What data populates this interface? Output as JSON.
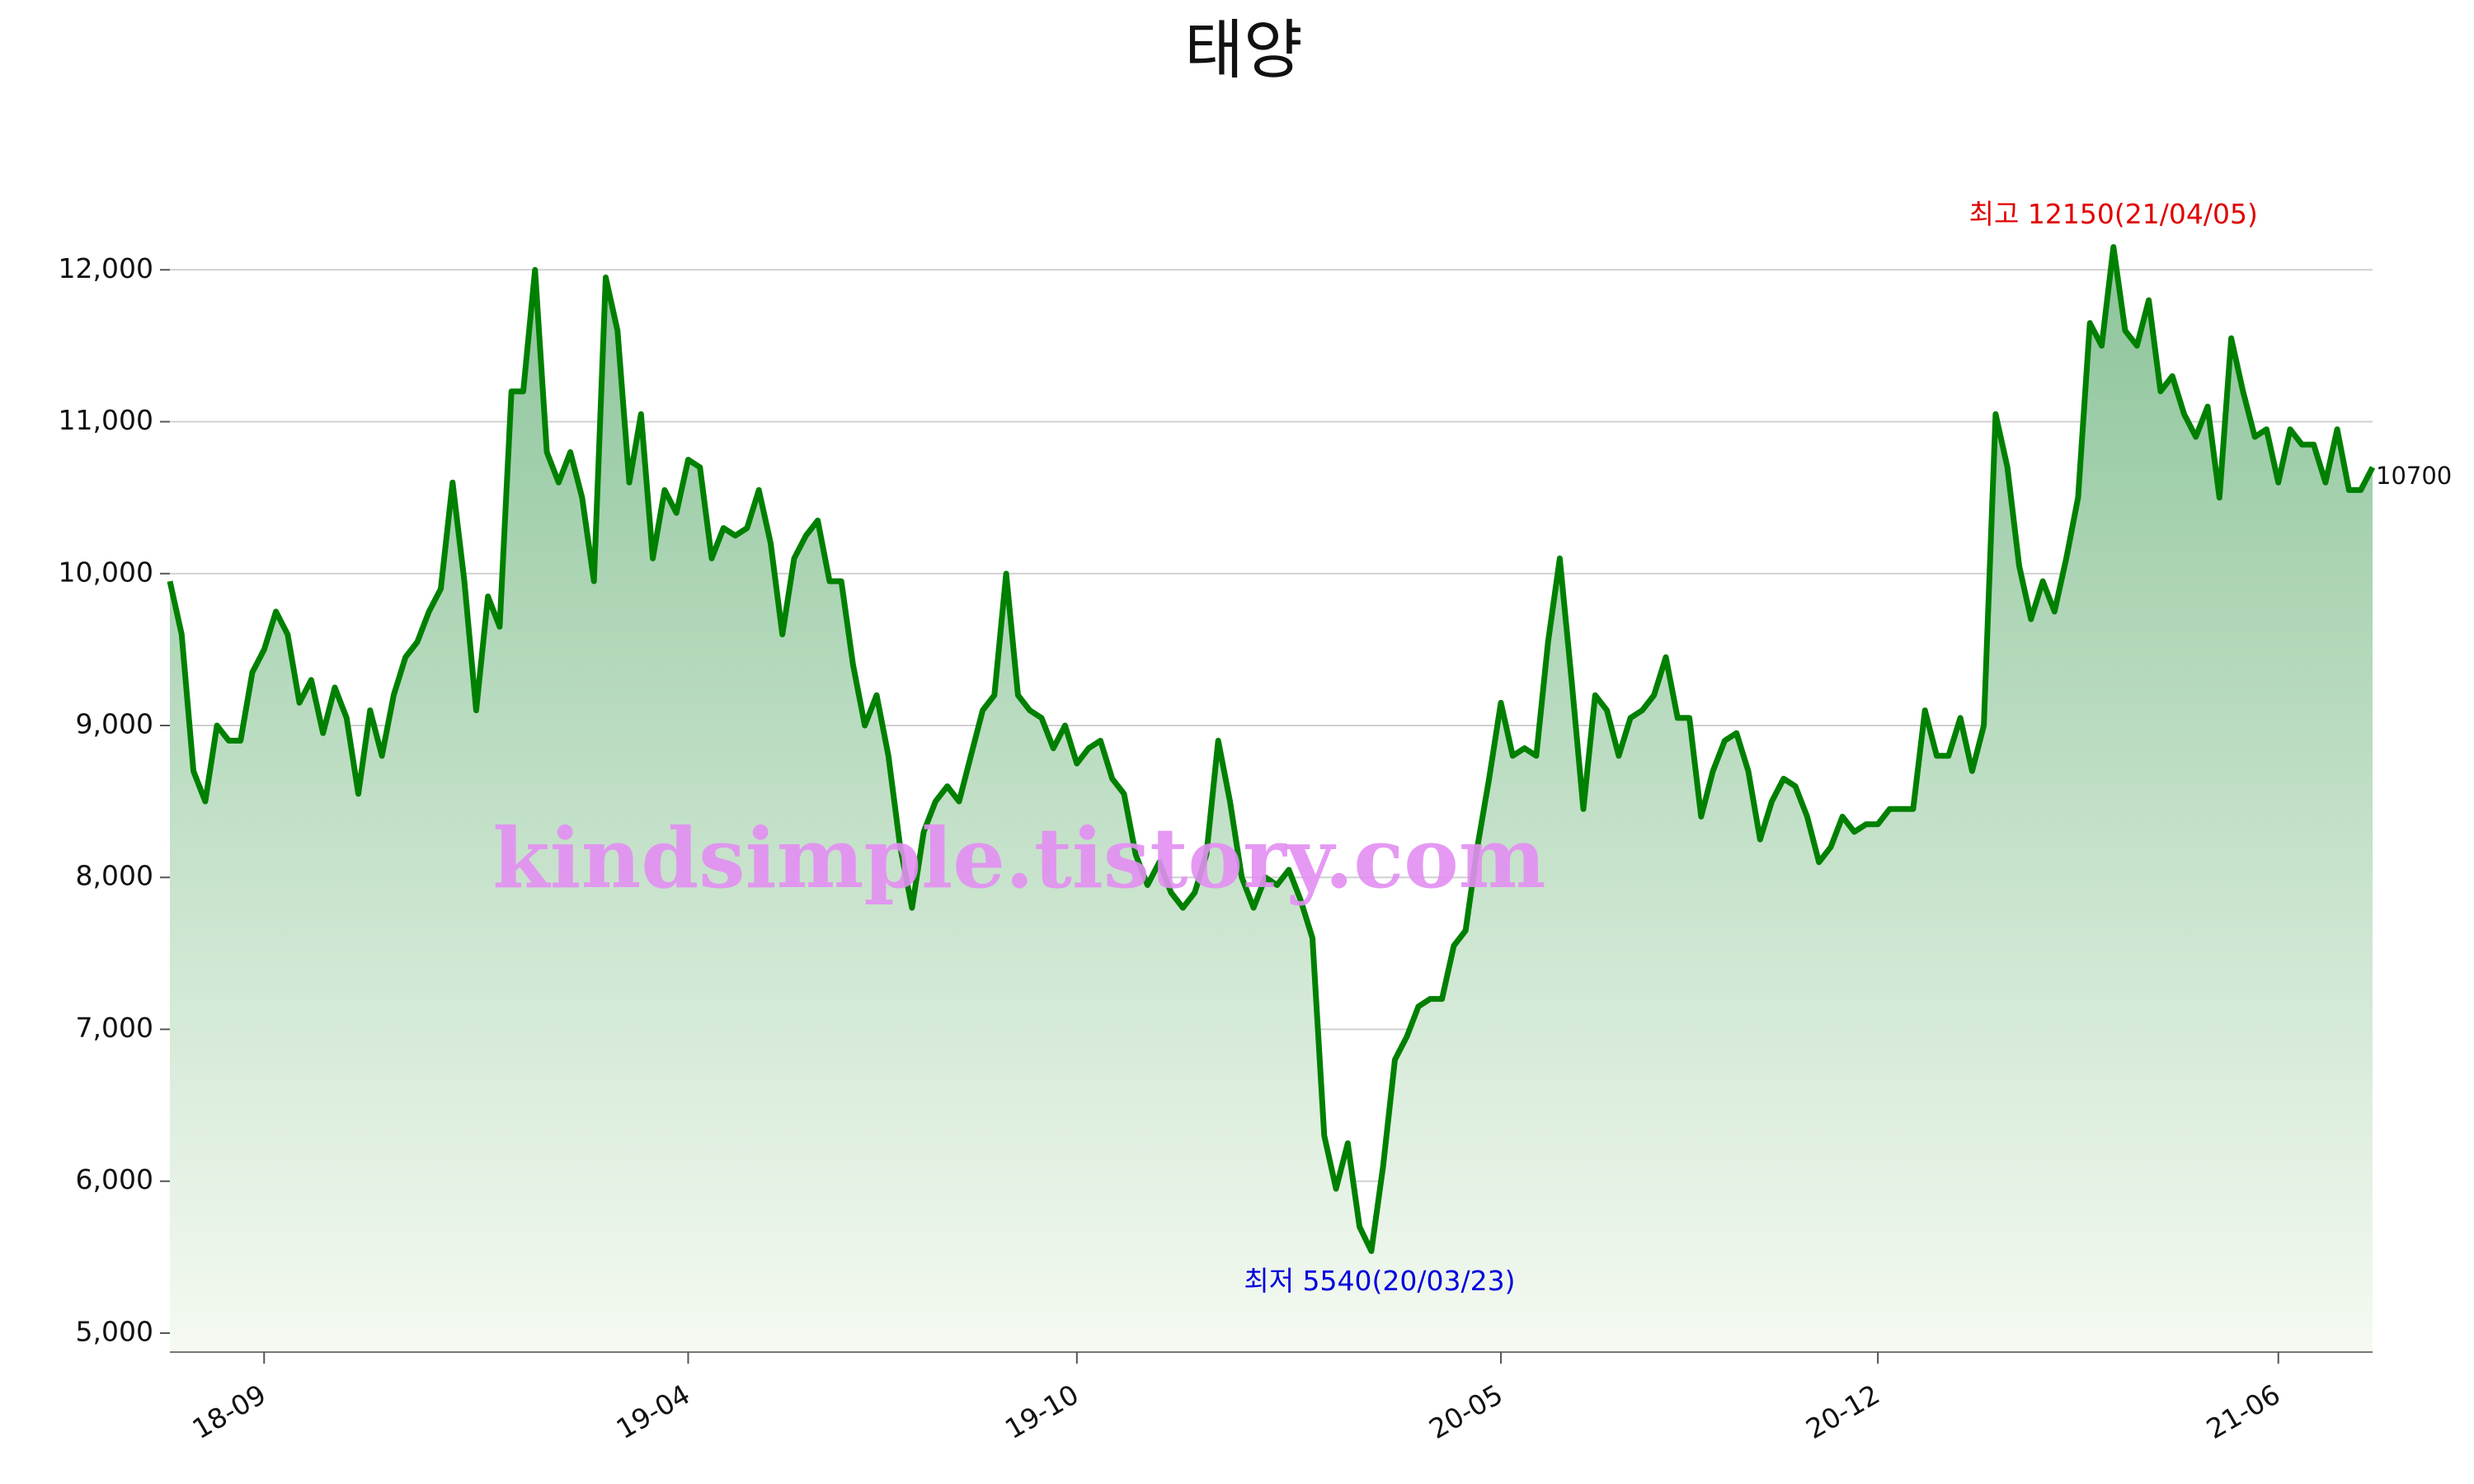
{
  "chart_data": {
    "type": "line",
    "title": "태양",
    "values": [
      9950,
      9600,
      8700,
      8500,
      9000,
      8900,
      8900,
      9350,
      9500,
      9750,
      9600,
      9150,
      9300,
      8950,
      9250,
      9050,
      8550,
      9100,
      8800,
      9200,
      9450,
      9550,
      9750,
      9900,
      10600,
      9950,
      9100,
      9850,
      9650,
      11200,
      11200,
      12000,
      10800,
      10600,
      10800,
      10500,
      9950,
      11950,
      11600,
      10600,
      11050,
      10100,
      10550,
      10400,
      10750,
      10700,
      10100,
      10300,
      10250,
      10300,
      10550,
      10200,
      9600,
      10100,
      10250,
      10350,
      9950,
      9950,
      9400,
      9000,
      9200,
      8800,
      8200,
      7800,
      8300,
      8500,
      8600,
      8500,
      8800,
      9100,
      9200,
      10000,
      9200,
      9100,
      9050,
      8850,
      9000,
      8750,
      8850,
      8900,
      8650,
      8550,
      8150,
      7950,
      8100,
      7900,
      7800,
      7900,
      8150,
      8900,
      8500,
      8000,
      7800,
      8000,
      7950,
      8050,
      7850,
      7600,
      6300,
      5950,
      6250,
      5700,
      5540,
      6100,
      6800,
      6950,
      7150,
      7200,
      7200,
      7550,
      7650,
      8200,
      8650,
      9150,
      8800,
      8850,
      8800,
      9550,
      10100,
      9300,
      8450,
      9200,
      9100,
      8800,
      9050,
      9100,
      9200,
      9450,
      9050,
      9050,
      8400,
      8700,
      8900,
      8950,
      8700,
      8250,
      8500,
      8650,
      8600,
      8400,
      8100,
      8200,
      8400,
      8300,
      8350,
      8350,
      8450,
      8450,
      8450,
      9100,
      8800,
      8800,
      9050,
      8700,
      9000,
      11050,
      10700,
      10050,
      9700,
      9950,
      9750,
      10100,
      10500,
      11650,
      11500,
      12150,
      11600,
      11500,
      11800,
      11200,
      11300,
      11050,
      10900,
      11100,
      10500,
      11550,
      11200,
      10900,
      10950,
      10600,
      10950,
      10850,
      10850,
      10600,
      10950,
      10550,
      10550,
      10700
    ],
    "color": "#008000",
    "ylim": [
      4875,
      12300
    ],
    "yticks": [
      {
        "value": 5000,
        "label": "5,000"
      },
      {
        "value": 6000,
        "label": "6,000"
      },
      {
        "value": 7000,
        "label": "7,000"
      },
      {
        "value": 8000,
        "label": "8,000"
      },
      {
        "value": 9000,
        "label": "9,000"
      },
      {
        "value": 10000,
        "label": "10,000"
      },
      {
        "value": 11000,
        "label": "11,000"
      },
      {
        "value": 12000,
        "label": "12,000"
      }
    ],
    "xticks": [
      {
        "value": 8,
        "label": "18-09"
      },
      {
        "value": 44,
        "label": "19-04"
      },
      {
        "value": 77,
        "label": "19-10"
      },
      {
        "value": 113,
        "label": "20-05"
      },
      {
        "value": 145,
        "label": "20-12"
      },
      {
        "value": 179,
        "label": "21-06"
      }
    ],
    "grid": true,
    "high_label": "최고 12150(21/04/05)",
    "low_label": "최저 5540(20/03/23)",
    "last_label": "10700",
    "watermark": "kindsimple.tistory.com"
  }
}
